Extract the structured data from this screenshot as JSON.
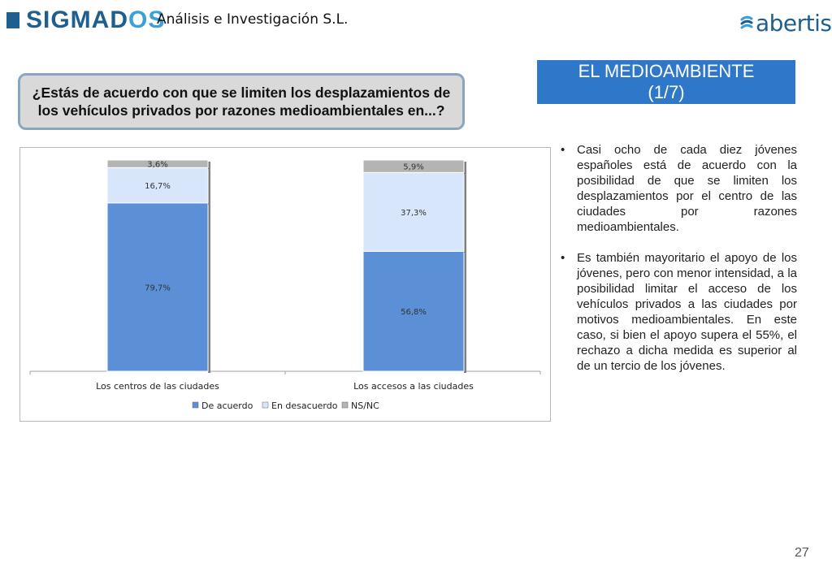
{
  "header": {
    "brand_part1": "SIGMAD",
    "brand_part2": "OS",
    "brand_sub": "Análisis e Investigación S.L.",
    "partner_logo": "abertis",
    "logo_icon": "abertis-swirl-icon",
    "brand_color": "#1f5f8f",
    "accent_color": "#3aa0d8"
  },
  "question": "¿Estás de acuerdo con que se limiten los desplazamientos de los vehículos privados por razones medioambientales en...?",
  "section": {
    "line1": "EL MEDIOAMBIENTE",
    "line2": "(1/7)",
    "color": "#2f77c8"
  },
  "chart_data": {
    "type": "bar",
    "stacked": true,
    "categories": [
      "Los centros de las ciudades",
      "Los accesos a las ciudades"
    ],
    "series": [
      {
        "name": "De acuerdo",
        "values": [
          79.7,
          56.8
        ],
        "labels": [
          "79,7%",
          "56,8%"
        ],
        "color": "#5b8fd6"
      },
      {
        "name": "En desacuerdo",
        "values": [
          16.7,
          37.3
        ],
        "labels": [
          "16,7%",
          "37,3%"
        ],
        "color": "#d7e6fa"
      },
      {
        "name": "NS/NC",
        "values": [
          3.6,
          5.9
        ],
        "labels": [
          "3,6%",
          "5,9%"
        ],
        "color": "#b4b4b4"
      }
    ],
    "ylim": [
      0,
      100
    ],
    "grid": false,
    "legend": "bottom",
    "title": "",
    "xlabel": "",
    "ylabel": ""
  },
  "bullets": [
    "Casi ocho de cada diez jóvenes españoles está de acuerdo con la posibilidad de que se limiten los desplazamientos por el centro de las ciudades por razones medioambientales.",
    "Es también mayoritario el apoyo de los jóvenes, pero con menor intensidad, a la posibilidad limitar el acceso de los vehículos privados a las ciudades por motivos medioambientales. En este caso, si bien el apoyo supera el 55%, el rechazo a dicha medida es superior al de un tercio de los jóvenes."
  ],
  "bullet_symbol": "•",
  "page_number": "27"
}
